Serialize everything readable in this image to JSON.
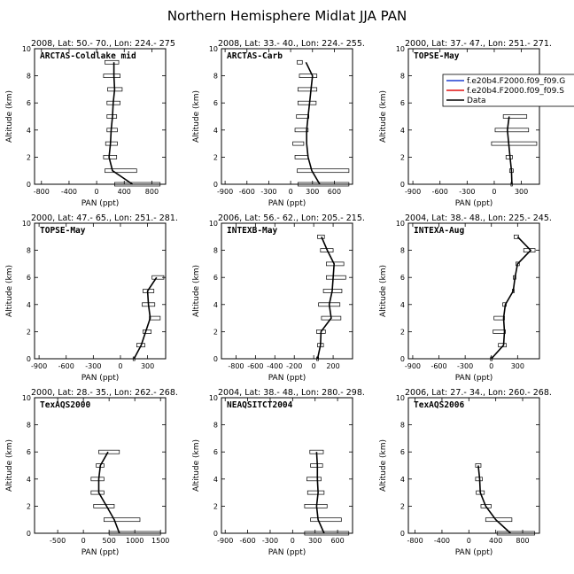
{
  "figure": {
    "title": "Northern Hemisphere Midlat JJA PAN"
  },
  "legend": {
    "entries": [
      {
        "label": "f.e20b4.F2000.f09_f09.G",
        "color": "#1f3fd0"
      },
      {
        "label": "f.e20b4.F2000.f09_f09.S",
        "color": "#e01010"
      },
      {
        "label": "Data",
        "color": "#000000"
      }
    ]
  },
  "chart_data": [
    {
      "type": "line",
      "title": "2008, Lat:  50.- 70., Lon: 224.- 275",
      "region": "ARCTAS-Coldlake mid",
      "xlabel": "PAN (ppt)",
      "ylabel": "Altitude (km)",
      "xlim": [
        -900,
        1000
      ],
      "ylim": [
        0,
        10
      ],
      "xticks": [
        -800,
        -400,
        0,
        400,
        800
      ],
      "yticks": [
        0,
        2,
        4,
        6,
        8,
        10
      ],
      "profile": [
        {
          "alt": 0.0,
          "x": 520,
          "lo": 260,
          "hi": 920
        },
        {
          "alt": 1.0,
          "x": 230,
          "lo": 120,
          "hi": 580
        },
        {
          "alt": 2.0,
          "x": 180,
          "lo": 100,
          "hi": 290
        },
        {
          "alt": 3.0,
          "x": 200,
          "lo": 130,
          "hi": 300
        },
        {
          "alt": 4.0,
          "x": 210,
          "lo": 150,
          "hi": 300
        },
        {
          "alt": 5.0,
          "x": 230,
          "lo": 150,
          "hi": 290
        },
        {
          "alt": 6.0,
          "x": 240,
          "lo": 150,
          "hi": 340
        },
        {
          "alt": 7.0,
          "x": 260,
          "lo": 160,
          "hi": 370
        },
        {
          "alt": 8.0,
          "x": 250,
          "lo": 100,
          "hi": 340
        },
        {
          "alt": 9.0,
          "x": 250,
          "lo": 120,
          "hi": 320
        }
      ]
    },
    {
      "type": "line",
      "title": "2008, Lat:  33.- 40., Lon: 224.- 255.",
      "region": "ARCTAS-Carb",
      "xlabel": "PAN (ppt)",
      "ylabel": "Altitude (km)",
      "xlim": [
        -950,
        850
      ],
      "ylim": [
        0,
        10
      ],
      "xticks": [
        -900,
        -600,
        -300,
        0,
        300,
        600
      ],
      "yticks": [
        0,
        2,
        4,
        6,
        8,
        10
      ],
      "profile": [
        {
          "alt": 0.0,
          "x": 400,
          "lo": 100,
          "hi": 800
        },
        {
          "alt": 1.0,
          "x": 290,
          "lo": 90,
          "hi": 800
        },
        {
          "alt": 2.0,
          "x": 240,
          "lo": 60,
          "hi": 240
        },
        {
          "alt": 3.0,
          "x": 220,
          "lo": 30,
          "hi": 180
        },
        {
          "alt": 4.0,
          "x": 220,
          "lo": 60,
          "hi": 240
        },
        {
          "alt": 5.0,
          "x": 240,
          "lo": 80,
          "hi": 250
        },
        {
          "alt": 6.0,
          "x": 260,
          "lo": 100,
          "hi": 350
        },
        {
          "alt": 7.0,
          "x": 280,
          "lo": 100,
          "hi": 360
        },
        {
          "alt": 8.0,
          "x": 300,
          "lo": 120,
          "hi": 360
        },
        {
          "alt": 9.0,
          "x": 210,
          "lo": 90,
          "hi": 160
        }
      ]
    },
    {
      "type": "line",
      "title": "2000, Lat: 37.- 47., Lon: 251.- 271.",
      "region": "TOPSE-May",
      "xlabel": "PAN (ppt)",
      "ylabel": "Altitude (km)",
      "xlim": [
        -950,
        500
      ],
      "ylim": [
        0,
        10
      ],
      "xticks": [
        -900,
        -600,
        -300,
        0,
        300
      ],
      "yticks": [
        0,
        2,
        4,
        6,
        8,
        10
      ],
      "profile": [
        {
          "alt": 0.0,
          "x": 195,
          "lo": 185,
          "hi": 200
        },
        {
          "alt": 1.0,
          "x": 190,
          "lo": 170,
          "hi": 210
        },
        {
          "alt": 2.0,
          "x": 175,
          "lo": 130,
          "hi": 200
        },
        {
          "alt": 3.0,
          "x": 160,
          "lo": -30,
          "hi": 470
        },
        {
          "alt": 4.0,
          "x": 145,
          "lo": 10,
          "hi": 380
        },
        {
          "alt": 5.0,
          "x": 165,
          "lo": 100,
          "hi": 360
        }
      ]
    },
    {
      "type": "line",
      "title": "2000, Lat: 47.- 65., Lon: 251.- 281.",
      "region": "TOPSE-May",
      "xlabel": "PAN (ppt)",
      "ylabel": "Altitude (km)",
      "xlim": [
        -950,
        500
      ],
      "ylim": [
        0,
        10
      ],
      "xticks": [
        -900,
        -600,
        -300,
        0,
        300
      ],
      "yticks": [
        0,
        2,
        4,
        6,
        8,
        10
      ],
      "profile": [
        {
          "alt": 0.0,
          "x": 150,
          "lo": 140,
          "hi": 160
        },
        {
          "alt": 1.0,
          "x": 230,
          "lo": 180,
          "hi": 270
        },
        {
          "alt": 2.0,
          "x": 280,
          "lo": 250,
          "hi": 340
        },
        {
          "alt": 3.0,
          "x": 330,
          "lo": 320,
          "hi": 440
        },
        {
          "alt": 4.0,
          "x": 310,
          "lo": 240,
          "hi": 380
        },
        {
          "alt": 5.0,
          "x": 300,
          "lo": 250,
          "hi": 370
        },
        {
          "alt": 6.0,
          "x": 400,
          "lo": 350,
          "hi": 480
        }
      ]
    },
    {
      "type": "line",
      "title": "2006, Lat: 56.- 62., Lon: 205.- 215.",
      "region": "INTEXB-May",
      "xlabel": "PAN (ppt)",
      "ylabel": "Altitude (km)",
      "xlim": [
        -950,
        400
      ],
      "ylim": [
        0,
        10
      ],
      "xticks": [
        -800,
        -600,
        -400,
        -200,
        0,
        200
      ],
      "yticks": [
        0,
        2,
        4,
        6,
        8,
        10
      ],
      "profile": [
        {
          "alt": 0.0,
          "x": 40,
          "lo": 30,
          "hi": 50
        },
        {
          "alt": 1.0,
          "x": 70,
          "lo": 40,
          "hi": 100
        },
        {
          "alt": 2.0,
          "x": 75,
          "lo": 30,
          "hi": 120
        },
        {
          "alt": 3.0,
          "x": 180,
          "lo": 80,
          "hi": 280
        },
        {
          "alt": 4.0,
          "x": 160,
          "lo": 50,
          "hi": 270
        },
        {
          "alt": 5.0,
          "x": 190,
          "lo": 100,
          "hi": 290
        },
        {
          "alt": 6.0,
          "x": 200,
          "lo": 130,
          "hi": 330
        },
        {
          "alt": 7.0,
          "x": 210,
          "lo": 130,
          "hi": 310
        },
        {
          "alt": 8.0,
          "x": 140,
          "lo": 70,
          "hi": 200
        },
        {
          "alt": 9.0,
          "x": 80,
          "lo": 40,
          "hi": 110
        }
      ]
    },
    {
      "type": "line",
      "title": "2004, Lat: 38.- 48., Lon: 225.- 245.",
      "region": "INTEXA-Aug",
      "xlabel": "PAN (ppt)",
      "ylabel": "Altitude (km)",
      "xlim": [
        -950,
        550
      ],
      "ylim": [
        0,
        10
      ],
      "xticks": [
        -900,
        -600,
        -300,
        0,
        300
      ],
      "yticks": [
        0,
        2,
        4,
        6,
        8,
        10
      ],
      "profile": [
        {
          "alt": 0.0,
          "x": 0,
          "lo": -10,
          "hi": 10
        },
        {
          "alt": 1.0,
          "x": 140,
          "lo": 80,
          "hi": 170
        },
        {
          "alt": 2.0,
          "x": 150,
          "lo": 20,
          "hi": 160
        },
        {
          "alt": 3.0,
          "x": 140,
          "lo": 30,
          "hi": 150
        },
        {
          "alt": 4.0,
          "x": 160,
          "lo": 130,
          "hi": 170
        },
        {
          "alt": 5.0,
          "x": 250,
          "lo": 240,
          "hi": 260
        },
        {
          "alt": 6.0,
          "x": 270,
          "lo": 250,
          "hi": 280
        },
        {
          "alt": 7.0,
          "x": 300,
          "lo": 280,
          "hi": 320
        },
        {
          "alt": 8.0,
          "x": 450,
          "lo": 370,
          "hi": 500
        },
        {
          "alt": 9.0,
          "x": 300,
          "lo": 260,
          "hi": 310
        }
      ]
    },
    {
      "type": "line",
      "title": "2000, Lat: 28.- 35., Lon: 262.- 268.",
      "region": "TexAQS2000",
      "xlabel": "PAN (ppt)",
      "ylabel": "Altitude (km)",
      "xlim": [
        -950,
        1600
      ],
      "ylim": [
        0,
        10
      ],
      "xticks": [
        -500,
        0,
        500,
        1000,
        1500
      ],
      "yticks": [
        0,
        2,
        4,
        6,
        8,
        10
      ],
      "profile": [
        {
          "alt": 0.0,
          "x": 700,
          "lo": 500,
          "hi": 1500
        },
        {
          "alt": 1.0,
          "x": 600,
          "lo": 400,
          "hi": 1100
        },
        {
          "alt": 2.0,
          "x": 450,
          "lo": 200,
          "hi": 600
        },
        {
          "alt": 3.0,
          "x": 300,
          "lo": 150,
          "hi": 400
        },
        {
          "alt": 4.0,
          "x": 300,
          "lo": 150,
          "hi": 400
        },
        {
          "alt": 5.0,
          "x": 330,
          "lo": 250,
          "hi": 400
        },
        {
          "alt": 6.0,
          "x": 480,
          "lo": 300,
          "hi": 700
        }
      ]
    },
    {
      "type": "line",
      "title": "2004, Lat: 38.- 48., Lon: 280.- 298.",
      "region": "NEAQSITCT2004",
      "xlabel": "PAN (ppt)",
      "ylabel": "Altitude (km)",
      "xlim": [
        -950,
        800
      ],
      "ylim": [
        0,
        10
      ],
      "xticks": [
        -900,
        -600,
        -300,
        0,
        300,
        600
      ],
      "yticks": [
        0,
        2,
        4,
        6,
        8,
        10
      ],
      "profile": [
        {
          "alt": 0.0,
          "x": 420,
          "lo": 160,
          "hi": 750
        },
        {
          "alt": 1.0,
          "x": 340,
          "lo": 240,
          "hi": 650
        },
        {
          "alt": 2.0,
          "x": 320,
          "lo": 160,
          "hi": 460
        },
        {
          "alt": 3.0,
          "x": 340,
          "lo": 200,
          "hi": 420
        },
        {
          "alt": 4.0,
          "x": 330,
          "lo": 190,
          "hi": 380
        },
        {
          "alt": 5.0,
          "x": 330,
          "lo": 240,
          "hi": 400
        },
        {
          "alt": 6.0,
          "x": 320,
          "lo": 230,
          "hi": 410
        }
      ]
    },
    {
      "type": "line",
      "title": "2006, Lat: 27.- 34., Lon: 260.- 268.",
      "region": "TexAQS2006",
      "xlabel": "PAN (ppt)",
      "ylabel": "Altitude (km)",
      "xlim": [
        -900,
        1050
      ],
      "ylim": [
        0,
        10
      ],
      "xticks": [
        -800,
        -400,
        0,
        400,
        800
      ],
      "yticks": [
        0,
        2,
        4,
        6,
        8,
        10
      ],
      "profile": [
        {
          "alt": 0.0,
          "x": 620,
          "lo": 420,
          "hi": 980
        },
        {
          "alt": 1.0,
          "x": 400,
          "lo": 250,
          "hi": 640
        },
        {
          "alt": 2.0,
          "x": 250,
          "lo": 180,
          "hi": 330
        },
        {
          "alt": 3.0,
          "x": 170,
          "lo": 110,
          "hi": 230
        },
        {
          "alt": 4.0,
          "x": 160,
          "lo": 100,
          "hi": 200
        },
        {
          "alt": 5.0,
          "x": 140,
          "lo": 100,
          "hi": 180
        }
      ]
    }
  ]
}
